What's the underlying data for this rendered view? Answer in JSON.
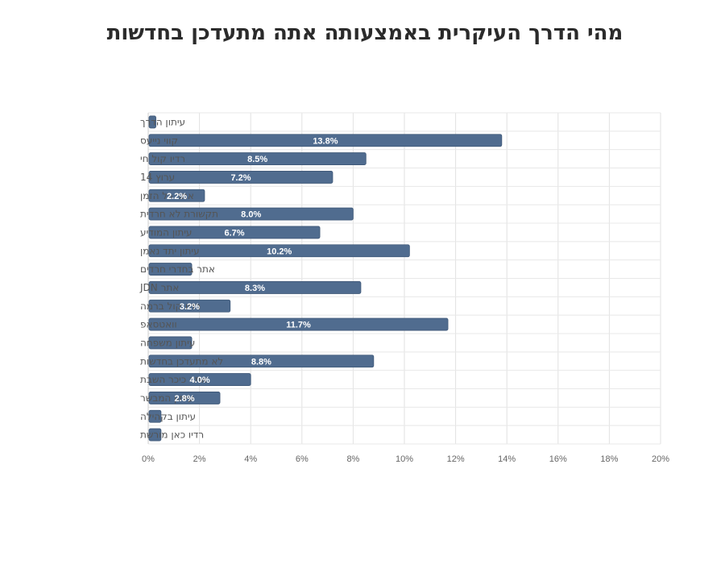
{
  "chart_data": {
    "type": "bar",
    "orientation": "horizontal",
    "title": "מהי הדרך העיקרית באמצעותה אתה מתעדכן בחדשות",
    "xlabel": "",
    "ylabel": "",
    "xlim": [
      0,
      20
    ],
    "x_ticks": [
      "0%",
      "2%",
      "4%",
      "6%",
      "8%",
      "10%",
      "12%",
      "14%",
      "16%",
      "18%",
      "20%"
    ],
    "grid": true,
    "bar_color": "#506c8f",
    "categories": [
      "עיתון הדרך",
      "קווי נייעס",
      "רדיו קול חי",
      "ערוץ 14",
      "אתר כל הזמן",
      "תקשורת לא חרדית",
      "עיתון המודיע",
      "עיתון יתד נאמן",
      "אתר בחדרי חרדים",
      "אתר JDN",
      "רדיו קול ברמה",
      "וואטסאפ",
      "עיתון משפחה",
      "לא מתעדכן בחדשות",
      "אתר כיכר השבת",
      "עיתון המבשר",
      "עיתון בקהילה",
      "רדיו כאן מורשת"
    ],
    "values": [
      0.3,
      13.8,
      8.5,
      7.2,
      2.2,
      8.0,
      6.7,
      10.2,
      1.7,
      8.3,
      3.2,
      11.7,
      1.7,
      8.8,
      4.0,
      2.8,
      0.5,
      0.5
    ],
    "data_labels": [
      "",
      "13.8%",
      "8.5%",
      "7.2%",
      "2.2%",
      "8.0%",
      "6.7%",
      "10.2%",
      "",
      "8.3%",
      "3.2%",
      "11.7%",
      "",
      "8.8%",
      "4.0%",
      "2.8%",
      "",
      ""
    ]
  }
}
